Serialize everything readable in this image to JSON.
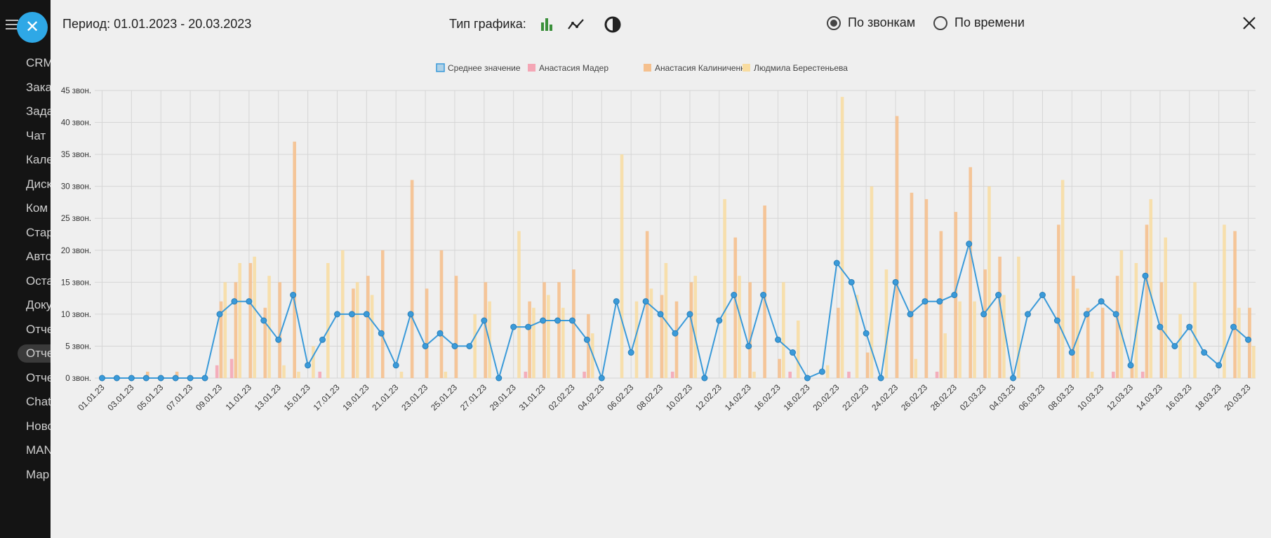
{
  "sidebar": {
    "items": [
      "CRM",
      "Зака",
      "Зада",
      "Чат",
      "Кале",
      "Диск",
      "Ком",
      "Стар",
      "Авто",
      "Оста",
      "Доку",
      "Отче",
      "Отче",
      "Отче",
      "Chat",
      "Ново",
      "MAN",
      "Мар"
    ],
    "active_index": 12,
    "close_symbol": "✕"
  },
  "header": {
    "period": "Период: 01.01.2023 - 20.03.2023",
    "chart_type_label": "Тип графика:",
    "chart_types": [
      {
        "icon": "bar-chart-icon",
        "active": true,
        "color": "#3a8f3a"
      },
      {
        "icon": "line-chart-icon",
        "active": false,
        "color": "#222222"
      },
      {
        "icon": "pie-chart-icon",
        "active": false,
        "color": "#222222"
      }
    ],
    "mode_options": [
      {
        "label": "По звонкам",
        "checked": true
      },
      {
        "label": "По времени",
        "checked": false
      }
    ],
    "close_icon": "close-icon"
  },
  "colors": {
    "average": "#3a9ad9",
    "mader": "#f4a6b5",
    "kalinichenko": "#f5c08e",
    "berestenyeva": "#f8dca0"
  },
  "chart_data": {
    "type": "bar",
    "title": "",
    "xlabel": "",
    "ylabel": "",
    "ylim": [
      0,
      45
    ],
    "y_ticks": [
      0,
      5,
      10,
      15,
      20,
      25,
      30,
      35,
      40,
      45
    ],
    "y_tick_suffix": " звон.",
    "grid": true,
    "legend_position": "top-center",
    "x_tick_labels": [
      "01.01.23",
      "03.01.23",
      "05.01.23",
      "07.01.23",
      "09.01.23",
      "11.01.23",
      "13.01.23",
      "15.01.23",
      "17.01.23",
      "19.01.23",
      "21.01.23",
      "23.01.23",
      "25.01.23",
      "27.01.23",
      "29.01.23",
      "31.01.23",
      "02.02.23",
      "04.02.23",
      "06.02.23",
      "08.02.23",
      "10.02.23",
      "12.02.23",
      "14.02.23",
      "16.02.23",
      "18.02.23",
      "20.02.23",
      "22.02.23",
      "24.02.23",
      "26.02.23",
      "28.02.23",
      "02.03.23",
      "04.03.23",
      "06.03.23",
      "08.03.23",
      "10.03.23",
      "12.03.23",
      "14.03.23",
      "16.03.23",
      "18.03.23",
      "20.03.23"
    ],
    "x_start": "2023-01-01",
    "x_end": "2023-03-20",
    "series": [
      {
        "name": "Среднее значение",
        "type": "line",
        "values": [
          0,
          0,
          0,
          0,
          0,
          0,
          0,
          0,
          10,
          12,
          12,
          9,
          6,
          13,
          2,
          6,
          10,
          10,
          10,
          7,
          2,
          10,
          5,
          7,
          5,
          5,
          9,
          0,
          8,
          8,
          9,
          9,
          9,
          6,
          0,
          12,
          4,
          12,
          10,
          7,
          10,
          0,
          9,
          13,
          5,
          13,
          6,
          4,
          0,
          1,
          18,
          15,
          7,
          0,
          15,
          10,
          12,
          12,
          13,
          21,
          10,
          13,
          0,
          10,
          13,
          9,
          4,
          10,
          12,
          10,
          2,
          16,
          8,
          5,
          8,
          4,
          2,
          8,
          6
        ]
      },
      {
        "name": "Анастасия Мадер",
        "type": "bar",
        "values": [
          0,
          0,
          0,
          0,
          0,
          0,
          0,
          0,
          2,
          3,
          0,
          0,
          0,
          0,
          0,
          1,
          0,
          0,
          0,
          0,
          0,
          0,
          0,
          0,
          0,
          0,
          0,
          0,
          0,
          1,
          0,
          0,
          0,
          1,
          0,
          0,
          0,
          0,
          0,
          1,
          0,
          0,
          0,
          0,
          0,
          0,
          0,
          1,
          0,
          0,
          0,
          1,
          0,
          0,
          0,
          0,
          0,
          1,
          0,
          0,
          0,
          0,
          0,
          0,
          0,
          0,
          0,
          0,
          0,
          1,
          0,
          1,
          0,
          0,
          0,
          0,
          0,
          0,
          0
        ]
      },
      {
        "name": "Анастасия Калиниченко",
        "type": "bar",
        "values": [
          0,
          0,
          0,
          1,
          0,
          1,
          0,
          0,
          12,
          15,
          18,
          11,
          15,
          37,
          0,
          0,
          0,
          14,
          16,
          20,
          0,
          31,
          14,
          20,
          16,
          0,
          15,
          0,
          0,
          12,
          15,
          15,
          17,
          10,
          0,
          0,
          0,
          23,
          13,
          12,
          15,
          0,
          0,
          22,
          15,
          27,
          3,
          0,
          0,
          0,
          11,
          0,
          4,
          0,
          41,
          29,
          28,
          23,
          26,
          33,
          17,
          19,
          0,
          0,
          0,
          24,
          16,
          11,
          11,
          16,
          2,
          24,
          15,
          0,
          0,
          0,
          0,
          23,
          11
        ]
      },
      {
        "name": "Людмила Берестеньева",
        "type": "bar",
        "values": [
          0,
          0,
          0,
          0,
          0,
          0,
          0,
          0,
          15,
          18,
          19,
          16,
          2,
          1,
          5,
          18,
          20,
          15,
          13,
          0,
          1,
          0,
          0,
          1,
          0,
          10,
          12,
          0,
          23,
          11,
          13,
          11,
          0,
          7,
          0,
          35,
          12,
          14,
          18,
          0,
          16,
          0,
          28,
          16,
          1,
          0,
          15,
          9,
          0,
          2,
          44,
          13,
          30,
          17,
          0,
          3,
          0,
          7,
          12,
          12,
          30,
          13,
          19,
          0,
          0,
          31,
          14,
          1,
          0,
          20,
          18,
          28,
          22,
          10,
          15,
          0,
          24,
          11,
          5
        ]
      }
    ]
  }
}
